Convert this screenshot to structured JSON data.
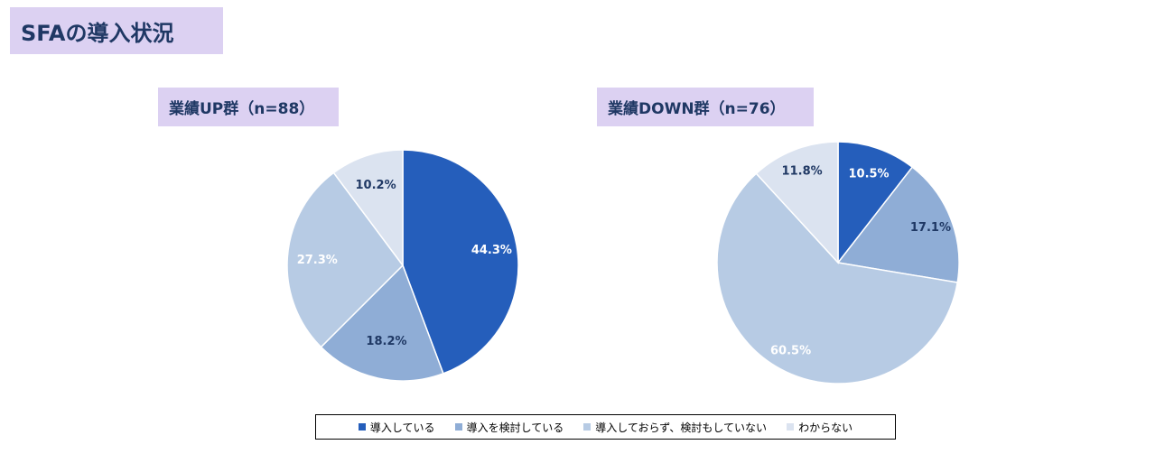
{
  "title": "SFAの導入状況",
  "colors": {
    "導入している": "#255ebb",
    "導入を検討している": "#8fadd6",
    "導入しておらず、検討もしていない": "#b7cbe4",
    "わからない": "#dbe3f0"
  },
  "legend": [
    "導入している",
    "導入を検討している",
    "導入しておらず、検討もしていない",
    "わからない"
  ],
  "chart_data": [
    {
      "type": "pie",
      "title": "業績UP群（n=88）",
      "categories": [
        "導入している",
        "導入を検討している",
        "導入しておらず、検討もしていない",
        "わからない"
      ],
      "values": [
        44.3,
        18.2,
        27.3,
        10.2
      ],
      "labels": [
        "44.3%",
        "18.2%",
        "27.3%",
        "10.2%"
      ]
    },
    {
      "type": "pie",
      "title": "業績DOWN群（n=76）",
      "categories": [
        "導入している",
        "導入を検討している",
        "導入しておらず、検討もしていない",
        "わからない"
      ],
      "values": [
        10.5,
        17.1,
        60.5,
        11.8
      ],
      "labels": [
        "10.5%",
        "17.1%",
        "60.5%",
        "11.8%"
      ]
    }
  ]
}
